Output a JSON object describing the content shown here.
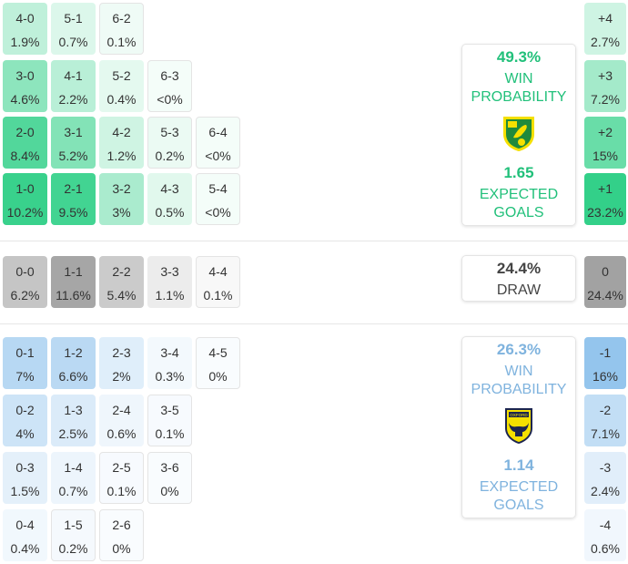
{
  "colors": {
    "home": "#2ecf86",
    "draw": "#9e9e9e",
    "away": "#8fc2ec",
    "home_text": "#21c07a",
    "away_text": "#7fb3de",
    "draw_text": "#444444"
  },
  "home_rows": [
    [
      [
        "4-0",
        "1.9%"
      ],
      [
        "5-1",
        "0.7%"
      ],
      [
        "6-2",
        "0.1%"
      ]
    ],
    [
      [
        "3-0",
        "4.6%"
      ],
      [
        "4-1",
        "2.2%"
      ],
      [
        "5-2",
        "0.4%"
      ],
      [
        "6-3",
        "<0%"
      ]
    ],
    [
      [
        "2-0",
        "8.4%"
      ],
      [
        "3-1",
        "5.2%"
      ],
      [
        "4-2",
        "1.2%"
      ],
      [
        "5-3",
        "0.2%"
      ],
      [
        "6-4",
        "<0%"
      ]
    ],
    [
      [
        "1-0",
        "10.2%"
      ],
      [
        "2-1",
        "9.5%"
      ],
      [
        "3-2",
        "3%"
      ],
      [
        "4-3",
        "0.5%"
      ],
      [
        "5-4",
        "<0%"
      ]
    ]
  ],
  "draw_row": [
    [
      "0-0",
      "6.2%"
    ],
    [
      "1-1",
      "11.6%"
    ],
    [
      "2-2",
      "5.4%"
    ],
    [
      "3-3",
      "1.1%"
    ],
    [
      "4-4",
      "0.1%"
    ]
  ],
  "away_rows": [
    [
      [
        "0-1",
        "7%"
      ],
      [
        "1-2",
        "6.6%"
      ],
      [
        "2-3",
        "2%"
      ],
      [
        "3-4",
        "0.3%"
      ],
      [
        "4-5",
        "0%"
      ]
    ],
    [
      [
        "0-2",
        "4%"
      ],
      [
        "1-3",
        "2.5%"
      ],
      [
        "2-4",
        "0.6%"
      ],
      [
        "3-5",
        "0.1%"
      ]
    ],
    [
      [
        "0-3",
        "1.5%"
      ],
      [
        "1-4",
        "0.7%"
      ],
      [
        "2-5",
        "0.1%"
      ],
      [
        "3-6",
        "0%"
      ]
    ],
    [
      [
        "0-4",
        "0.4%"
      ],
      [
        "1-5",
        "0.2%"
      ],
      [
        "2-6",
        "0%"
      ]
    ]
  ],
  "margins": [
    [
      "+4",
      "2.7%"
    ],
    [
      "+3",
      "7.2%"
    ],
    [
      "+2",
      "15%"
    ],
    [
      "+1",
      "23.2%"
    ],
    [
      "0",
      "24.4%"
    ],
    [
      "-1",
      "16%"
    ],
    [
      "-2",
      "7.1%"
    ],
    [
      "-3",
      "2.4%"
    ],
    [
      "-4",
      "0.6%"
    ]
  ],
  "home_card": {
    "win_pct": "49.3%",
    "win_label_1": "WIN",
    "win_label_2": "PROBABILITY",
    "xg": "1.65",
    "xg_label_1": "EXPECTED",
    "xg_label_2": "GOALS",
    "logo": "norwich-city-crest"
  },
  "draw_card": {
    "pct": "24.4%",
    "label": "DRAW"
  },
  "away_card": {
    "win_pct": "26.3%",
    "win_label_1": "WIN",
    "win_label_2": "PROBABILITY",
    "xg": "1.14",
    "xg_label_1": "EXPECTED",
    "xg_label_2": "GOALS",
    "logo": "oxford-united-crest",
    "logo_text": "OXFORD"
  }
}
